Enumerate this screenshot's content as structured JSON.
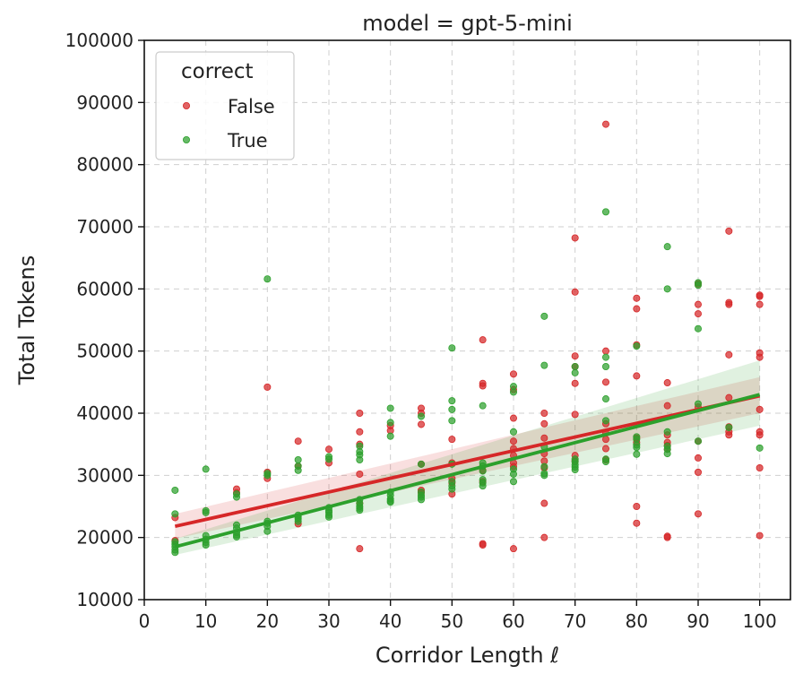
{
  "chart_data": {
    "type": "scatter",
    "title": "model = gpt-5-mini",
    "xlabel": "Corridor Length ℓ",
    "ylabel": "Total Tokens",
    "xlim": [
      0,
      105
    ],
    "ylim": [
      10000,
      100000
    ],
    "xticks": [
      0,
      10,
      20,
      30,
      40,
      50,
      60,
      70,
      80,
      90,
      100
    ],
    "yticks": [
      10000,
      20000,
      30000,
      40000,
      50000,
      60000,
      70000,
      80000,
      90000,
      100000
    ],
    "grid": true,
    "legend": {
      "title": "correct",
      "placement": "top-left"
    },
    "series": [
      {
        "name": "False",
        "color": "#d62728",
        "regression": {
          "x": [
            5,
            100
          ],
          "y": [
            21800,
            42800
          ],
          "ci_lower": [
            19800,
            40000
          ],
          "ci_upper": [
            23800,
            45800
          ]
        },
        "points": [
          [
            5,
            23200
          ],
          [
            5,
            19500
          ],
          [
            15,
            27800
          ],
          [
            15,
            27200
          ],
          [
            20,
            44200
          ],
          [
            20,
            30500
          ],
          [
            20,
            29500
          ],
          [
            25,
            35500
          ],
          [
            25,
            31500
          ],
          [
            25,
            22200
          ],
          [
            30,
            34200
          ],
          [
            30,
            32000
          ],
          [
            35,
            40000
          ],
          [
            35,
            37000
          ],
          [
            35,
            35000
          ],
          [
            35,
            30200
          ],
          [
            35,
            25500
          ],
          [
            35,
            18200
          ],
          [
            40,
            38000
          ],
          [
            40,
            37200
          ],
          [
            45,
            40800
          ],
          [
            45,
            40000
          ],
          [
            45,
            38200
          ],
          [
            45,
            31800
          ],
          [
            45,
            27600
          ],
          [
            45,
            27200
          ],
          [
            50,
            35800
          ],
          [
            50,
            32000
          ],
          [
            50,
            29500
          ],
          [
            50,
            28800
          ],
          [
            50,
            27000
          ],
          [
            55,
            51800
          ],
          [
            55,
            44800
          ],
          [
            55,
            44400
          ],
          [
            55,
            30800
          ],
          [
            55,
            29000
          ],
          [
            55,
            19000
          ],
          [
            55,
            18800
          ],
          [
            60,
            46300
          ],
          [
            60,
            43800
          ],
          [
            60,
            39200
          ],
          [
            60,
            35500
          ],
          [
            60,
            34300
          ],
          [
            60,
            33200
          ],
          [
            60,
            32000
          ],
          [
            60,
            31400
          ],
          [
            60,
            18200
          ],
          [
            65,
            40000
          ],
          [
            65,
            38300
          ],
          [
            65,
            36000
          ],
          [
            65,
            33500
          ],
          [
            65,
            32300
          ],
          [
            65,
            31200
          ],
          [
            65,
            25500
          ],
          [
            65,
            20000
          ],
          [
            70,
            68200
          ],
          [
            70,
            59500
          ],
          [
            70,
            49200
          ],
          [
            70,
            47500
          ],
          [
            70,
            44800
          ],
          [
            70,
            39800
          ],
          [
            70,
            33200
          ],
          [
            70,
            32300
          ],
          [
            75,
            86500
          ],
          [
            75,
            50000
          ],
          [
            75,
            45000
          ],
          [
            75,
            38300
          ],
          [
            75,
            36800
          ],
          [
            75,
            35800
          ],
          [
            75,
            34300
          ],
          [
            75,
            32500
          ],
          [
            80,
            58500
          ],
          [
            80,
            56800
          ],
          [
            80,
            51000
          ],
          [
            80,
            46000
          ],
          [
            80,
            36000
          ],
          [
            80,
            35300
          ],
          [
            80,
            25000
          ],
          [
            80,
            22300
          ],
          [
            85,
            44900
          ],
          [
            85,
            41200
          ],
          [
            85,
            36500
          ],
          [
            85,
            35300
          ],
          [
            85,
            34800
          ],
          [
            85,
            34200
          ],
          [
            85,
            20200
          ],
          [
            85,
            20000
          ],
          [
            90,
            60800
          ],
          [
            90,
            57500
          ],
          [
            90,
            56000
          ],
          [
            90,
            41000
          ],
          [
            90,
            35500
          ],
          [
            90,
            32800
          ],
          [
            90,
            30500
          ],
          [
            90,
            23800
          ],
          [
            95,
            69300
          ],
          [
            95,
            57800
          ],
          [
            95,
            57500
          ],
          [
            95,
            49400
          ],
          [
            95,
            42500
          ],
          [
            95,
            37800
          ],
          [
            95,
            37000
          ],
          [
            95,
            36500
          ],
          [
            100,
            59000
          ],
          [
            100,
            58800
          ],
          [
            100,
            57500
          ],
          [
            100,
            49700
          ],
          [
            100,
            49000
          ],
          [
            100,
            40600
          ],
          [
            100,
            37000
          ],
          [
            100,
            36500
          ],
          [
            100,
            31200
          ],
          [
            100,
            20300
          ]
        ]
      },
      {
        "name": "True",
        "color": "#2ca02c",
        "regression": {
          "x": [
            5,
            100
          ],
          "y": [
            18500,
            43000
          ],
          "ci_lower": [
            17200,
            38000
          ],
          "ci_upper": [
            19800,
            48500
          ]
        },
        "points": [
          [
            5,
            27600
          ],
          [
            5,
            23800
          ],
          [
            5,
            19300
          ],
          [
            5,
            18900
          ],
          [
            5,
            18500
          ],
          [
            5,
            18000
          ],
          [
            5,
            17600
          ],
          [
            10,
            31000
          ],
          [
            10,
            24300
          ],
          [
            10,
            24000
          ],
          [
            10,
            20300
          ],
          [
            10,
            19700
          ],
          [
            10,
            19200
          ],
          [
            10,
            18800
          ],
          [
            15,
            27000
          ],
          [
            15,
            26500
          ],
          [
            15,
            22000
          ],
          [
            15,
            21500
          ],
          [
            15,
            20800
          ],
          [
            15,
            20400
          ],
          [
            15,
            20100
          ],
          [
            20,
            61600
          ],
          [
            20,
            30300
          ],
          [
            20,
            30000
          ],
          [
            20,
            22600
          ],
          [
            20,
            22300
          ],
          [
            20,
            21800
          ],
          [
            20,
            21000
          ],
          [
            25,
            32500
          ],
          [
            25,
            31500
          ],
          [
            25,
            30800
          ],
          [
            25,
            23600
          ],
          [
            25,
            23300
          ],
          [
            25,
            23000
          ],
          [
            25,
            22600
          ],
          [
            30,
            33000
          ],
          [
            30,
            32600
          ],
          [
            30,
            24800
          ],
          [
            30,
            24300
          ],
          [
            30,
            24000
          ],
          [
            30,
            23600
          ],
          [
            30,
            23300
          ],
          [
            35,
            34700
          ],
          [
            35,
            33800
          ],
          [
            35,
            33300
          ],
          [
            35,
            32500
          ],
          [
            35,
            26100
          ],
          [
            35,
            25500
          ],
          [
            35,
            25000
          ],
          [
            35,
            24700
          ],
          [
            35,
            24400
          ],
          [
            40,
            40800
          ],
          [
            40,
            38500
          ],
          [
            40,
            36300
          ],
          [
            40,
            27300
          ],
          [
            40,
            26800
          ],
          [
            40,
            26200
          ],
          [
            40,
            25900
          ],
          [
            40,
            25700
          ],
          [
            45,
            39500
          ],
          [
            45,
            31800
          ],
          [
            45,
            27300
          ],
          [
            45,
            26800
          ],
          [
            45,
            26500
          ],
          [
            45,
            26100
          ],
          [
            50,
            50500
          ],
          [
            50,
            42000
          ],
          [
            50,
            40600
          ],
          [
            50,
            38800
          ],
          [
            50,
            31800
          ],
          [
            50,
            29000
          ],
          [
            50,
            28300
          ],
          [
            50,
            27800
          ],
          [
            55,
            41200
          ],
          [
            55,
            32000
          ],
          [
            55,
            31500
          ],
          [
            55,
            30700
          ],
          [
            55,
            29300
          ],
          [
            55,
            28800
          ],
          [
            55,
            28300
          ],
          [
            60,
            44300
          ],
          [
            60,
            43400
          ],
          [
            60,
            37000
          ],
          [
            60,
            31000
          ],
          [
            60,
            30200
          ],
          [
            60,
            29000
          ],
          [
            65,
            55600
          ],
          [
            65,
            47700
          ],
          [
            65,
            34600
          ],
          [
            65,
            31400
          ],
          [
            65,
            30300
          ],
          [
            65,
            30000
          ],
          [
            70,
            47500
          ],
          [
            70,
            46500
          ],
          [
            70,
            32600
          ],
          [
            70,
            32200
          ],
          [
            70,
            31700
          ],
          [
            70,
            31300
          ],
          [
            70,
            30900
          ],
          [
            75,
            72400
          ],
          [
            75,
            49000
          ],
          [
            75,
            47500
          ],
          [
            75,
            42300
          ],
          [
            75,
            38800
          ],
          [
            75,
            32600
          ],
          [
            75,
            32200
          ],
          [
            80,
            50800
          ],
          [
            80,
            36200
          ],
          [
            80,
            35800
          ],
          [
            80,
            34900
          ],
          [
            80,
            34500
          ],
          [
            80,
            33400
          ],
          [
            85,
            66800
          ],
          [
            85,
            60000
          ],
          [
            85,
            37000
          ],
          [
            85,
            34700
          ],
          [
            85,
            34200
          ],
          [
            85,
            33500
          ],
          [
            90,
            61000
          ],
          [
            90,
            60600
          ],
          [
            90,
            53600
          ],
          [
            90,
            41500
          ],
          [
            90,
            35500
          ],
          [
            95,
            37700
          ],
          [
            100,
            34400
          ]
        ]
      }
    ]
  }
}
